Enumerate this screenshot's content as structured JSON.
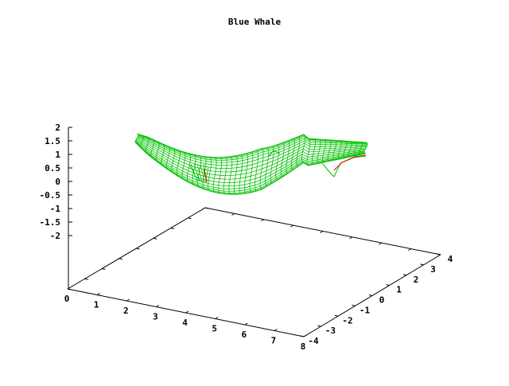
{
  "chart_data": {
    "type": "surface",
    "title": "Blue Whale",
    "x_ticks": [
      "0",
      "1",
      "2",
      "3",
      "4",
      "5",
      "6",
      "7",
      "8"
    ],
    "y_ticks": [
      "-4",
      "-3",
      "-2",
      "-1",
      "0",
      "1",
      "2",
      "3",
      "4"
    ],
    "z_ticks": [
      "2",
      "1.5",
      "1",
      "0.5",
      "0",
      "-0.5",
      "-1",
      "-1.5",
      "-2"
    ],
    "xlim": [
      0,
      8
    ],
    "ylim": [
      -4,
      4
    ],
    "zlim": [
      -2,
      2
    ],
    "series": [
      {
        "surface_color": "#00c000",
        "hidden_color": "#ff0000"
      }
    ]
  }
}
